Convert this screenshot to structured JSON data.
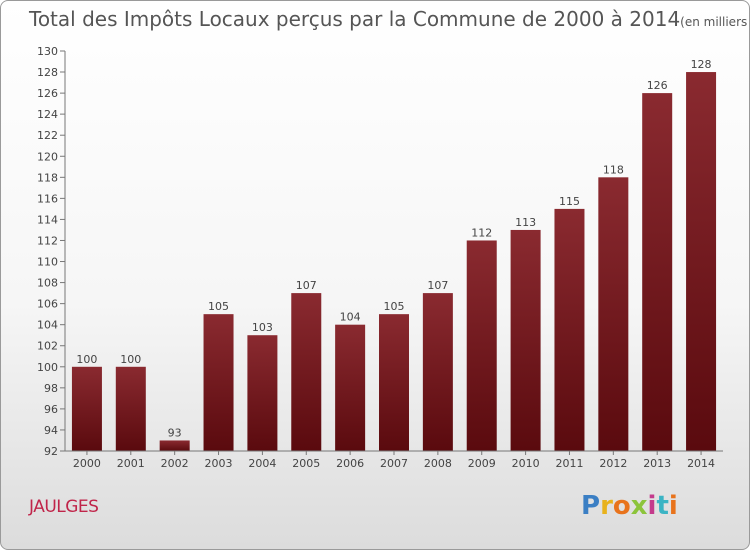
{
  "header": {
    "title": "Total des Impôts Locaux perçus par la Commune de 2000 à 2014",
    "subtitle": "(en milliers d'€)"
  },
  "commune": "JAULGES",
  "logo": {
    "letters": [
      "P",
      "r",
      "o",
      "x",
      "i",
      "t",
      "i"
    ],
    "colors": [
      "#3b7fc4",
      "#e8b21c",
      "#e8731c",
      "#8cc43b",
      "#c43b8c",
      "#3bb4c4",
      "#e8731c"
    ]
  },
  "colors": {
    "bar": "#6e1015",
    "bar_light": "#8e2a30",
    "axis": "#888888",
    "grid": "#cccccc"
  },
  "chart_data": {
    "type": "bar",
    "title": "Total des Impôts Locaux perçus par la Commune de 2000 à 2014",
    "subtitle": "(en milliers d'€)",
    "categories": [
      "2000",
      "2001",
      "2002",
      "2003",
      "2004",
      "2005",
      "2006",
      "2007",
      "2008",
      "2009",
      "2010",
      "2011",
      "2012",
      "2013",
      "2014"
    ],
    "values": [
      100,
      100,
      93,
      105,
      103,
      107,
      104,
      105,
      107,
      112,
      113,
      115,
      118,
      126,
      128
    ],
    "ylim": [
      92,
      130
    ],
    "yticks": [
      92,
      94,
      96,
      98,
      100,
      102,
      104,
      106,
      108,
      110,
      112,
      114,
      116,
      118,
      120,
      122,
      124,
      126,
      128,
      130
    ],
    "grid": false,
    "data_labels": true
  }
}
